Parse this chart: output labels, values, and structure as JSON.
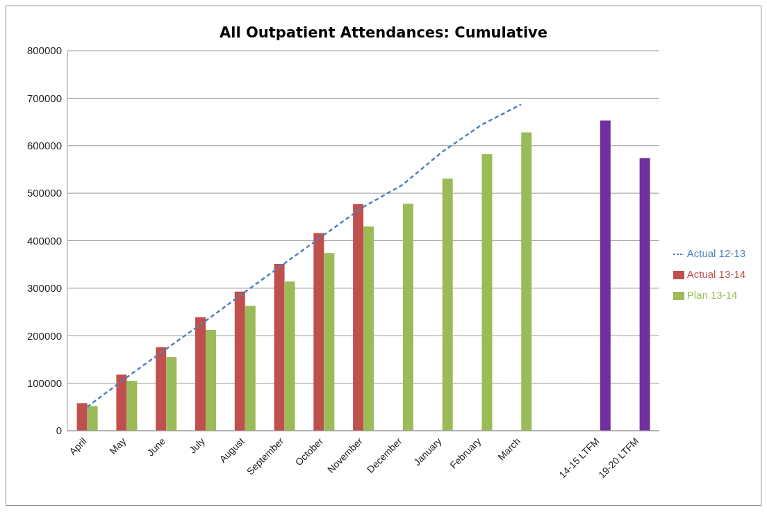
{
  "chart_data": {
    "type": "bar",
    "title": "All Outpatient Attendances: Cumulative",
    "categories": [
      "April",
      "May",
      "June",
      "July",
      "August",
      "September",
      "October",
      "November",
      "December",
      "January",
      "February",
      "March",
      null,
      "14-15 LTFM",
      "19-20 LTFM"
    ],
    "series": [
      {
        "name": "Actual 13-14",
        "color": "#c0504d",
        "values": [
          58000,
          118000,
          176000,
          239000,
          293000,
          351000,
          416000,
          477000,
          null,
          null,
          null,
          null,
          null,
          null,
          null
        ]
      },
      {
        "name": "Plan 13-14",
        "color": "#9bbb59",
        "colors": [
          "#9bbb59",
          "#9bbb59",
          "#9bbb59",
          "#9bbb59",
          "#9bbb59",
          "#9bbb59",
          "#9bbb59",
          "#9bbb59",
          "#9bbb59",
          "#9bbb59",
          "#9bbb59",
          "#9bbb59",
          "#9bbb59",
          "#7030a0",
          "#7030a0"
        ],
        "values": [
          52000,
          105000,
          155000,
          212000,
          263000,
          314000,
          374000,
          430000,
          478000,
          531000,
          582000,
          628000,
          null,
          653000,
          574000
        ]
      },
      {
        "name": "Actual 12-13",
        "type": "line",
        "color": "#4f81bd",
        "line_style": "dashed",
        "marker": "none",
        "values": [
          50000,
          112000,
          172000,
          231000,
          292000,
          352000,
          412000,
          471000,
          518000,
          587000,
          644000,
          687000,
          null,
          null,
          null
        ]
      }
    ],
    "ylim": [
      0,
      800000
    ],
    "yticks": [
      0,
      100000,
      200000,
      300000,
      400000,
      500000,
      600000,
      700000,
      800000
    ],
    "grid": "y",
    "legend": "right"
  }
}
